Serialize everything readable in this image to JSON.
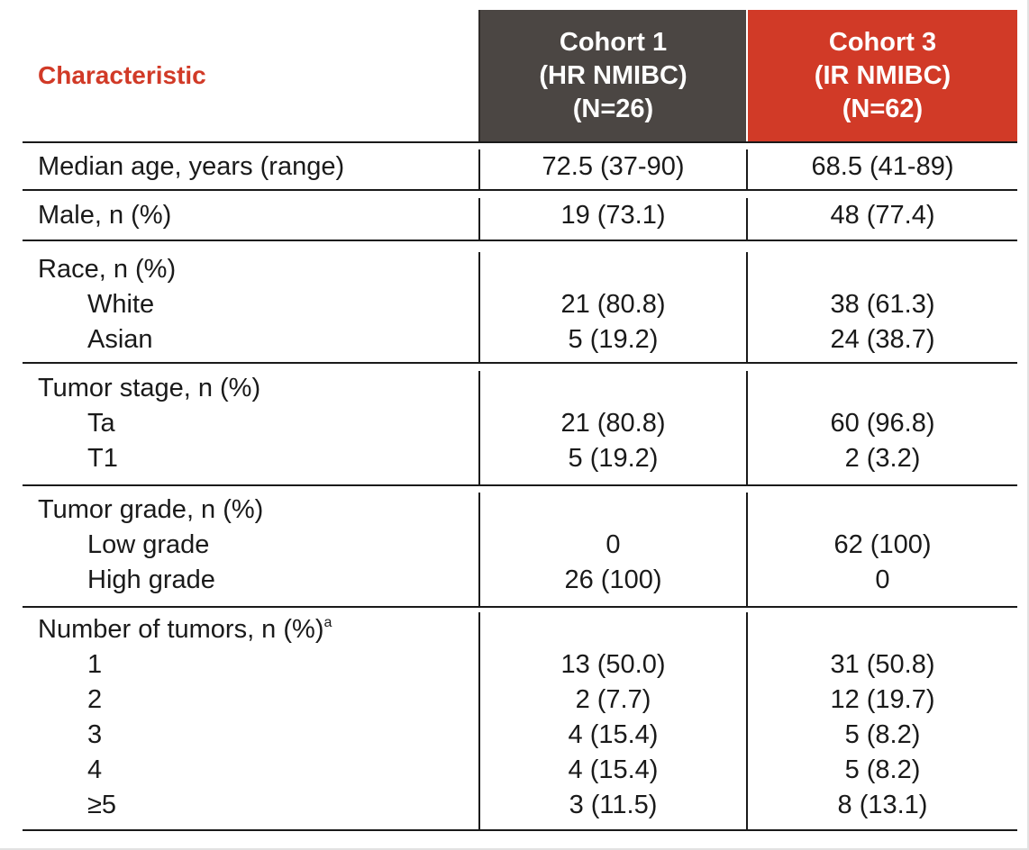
{
  "header": {
    "characteristic": "Characteristic",
    "cohort1": [
      "Cohort 1",
      "(HR NMIBC)",
      "(N=26)"
    ],
    "cohort3": [
      "Cohort 3",
      "(IR NMIBC)",
      "(N=62)"
    ]
  },
  "rows": [
    {
      "label": "Median age, years (range)",
      "c1": "72.5 (37-90)",
      "c3": "68.5 (41-89)"
    },
    {
      "label": "Male, n (%)",
      "c1": "19 (73.1)",
      "c3": "48 (77.4)"
    },
    {
      "label": "Race, n (%)",
      "sub": [
        {
          "label": "White",
          "c1": "21 (80.8)",
          "c3": "38 (61.3)"
        },
        {
          "label": "Asian",
          "c1": "5 (19.2)",
          "c3": "24 (38.7)"
        }
      ]
    },
    {
      "label": "Tumor stage, n (%)",
      "sub": [
        {
          "label": "Ta",
          "c1": "21 (80.8)",
          "c3": "60 (96.8)"
        },
        {
          "label": "T1",
          "c1": "5 (19.2)",
          "c3": "2 (3.2)"
        }
      ]
    },
    {
      "label": "Tumor grade, n (%)",
      "sub": [
        {
          "label": "Low grade",
          "c1": "0",
          "c3": "62 (100)"
        },
        {
          "label": "High grade",
          "c1": "26 (100)",
          "c3": "0"
        }
      ]
    },
    {
      "label": "Number of tumors, n (%)",
      "sup": "a",
      "sub": [
        {
          "label": "1",
          "c1": "13 (50.0)",
          "c3": "31 (50.8)"
        },
        {
          "label": "2",
          "c1": "2 (7.7)",
          "c3": "12 (19.7)"
        },
        {
          "label": "3",
          "c1": "4 (15.4)",
          "c3": "5 (8.2)"
        },
        {
          "label": "4",
          "c1": "4 (15.4)",
          "c3": "5 (8.2)"
        },
        {
          "label": "≥5",
          "c1": "3 (11.5)",
          "c3": "8 (13.1)"
        }
      ]
    }
  ],
  "colors": {
    "accent": "#d13a27",
    "cohort1_bg": "#4b4643",
    "text": "#1a1a1a"
  }
}
